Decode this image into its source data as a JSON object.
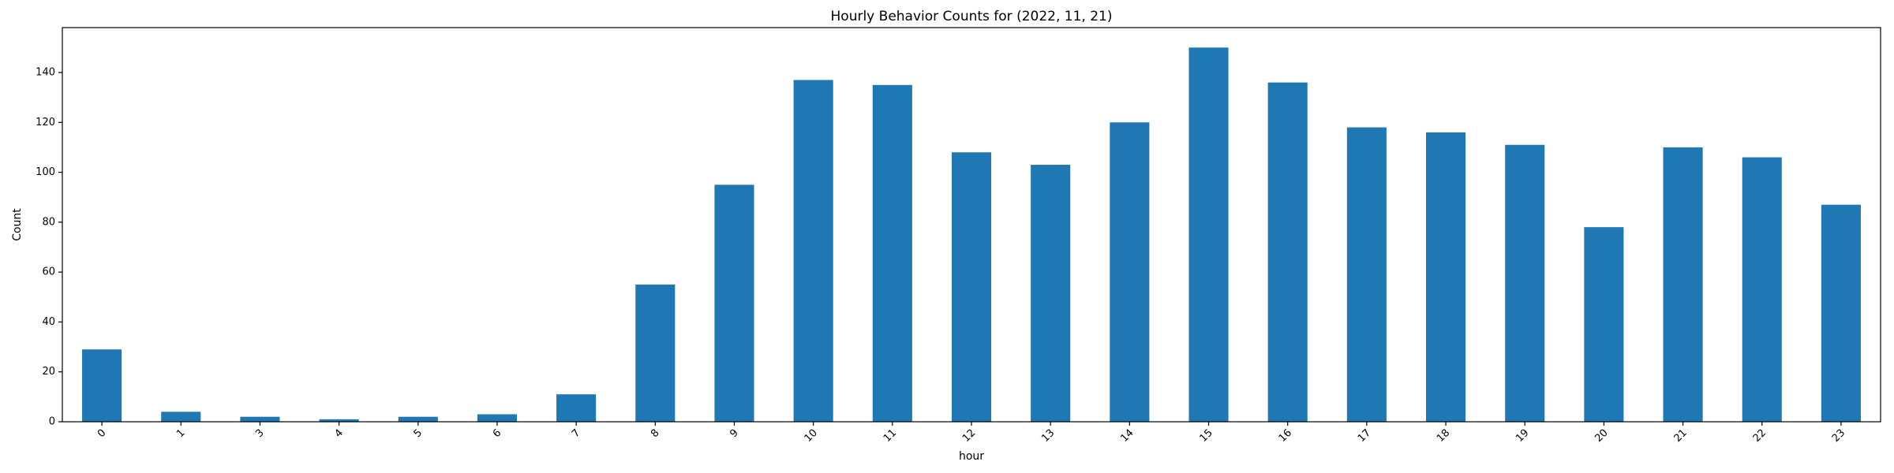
{
  "chart_data": {
    "type": "bar",
    "title": "Hourly Behavior Counts for (2022, 11, 21)",
    "xlabel": "hour",
    "ylabel": "Count",
    "categories": [
      "0",
      "1",
      "3",
      "4",
      "5",
      "6",
      "7",
      "8",
      "9",
      "10",
      "11",
      "12",
      "13",
      "14",
      "15",
      "16",
      "17",
      "18",
      "19",
      "20",
      "21",
      "22",
      "23"
    ],
    "values": [
      29,
      4,
      2,
      1,
      2,
      3,
      11,
      55,
      95,
      137,
      135,
      108,
      103,
      120,
      150,
      136,
      118,
      116,
      111,
      78,
      110,
      106,
      87
    ],
    "ylim": [
      0,
      158
    ],
    "yticks": [
      0,
      20,
      40,
      60,
      80,
      100,
      120,
      140
    ],
    "bar_color": "#1f77b4",
    "grid": false,
    "legend": "none"
  }
}
